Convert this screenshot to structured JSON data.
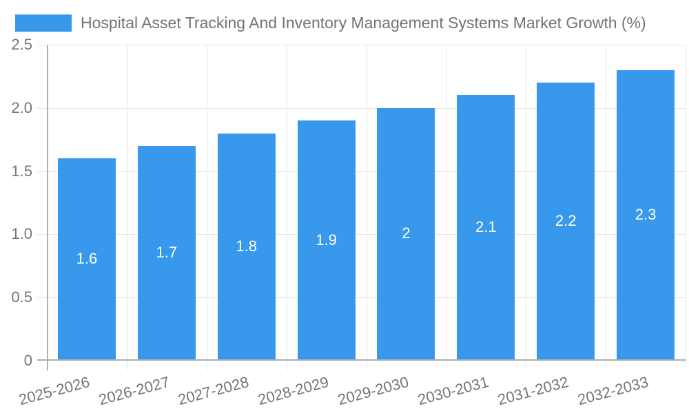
{
  "chart_data": {
    "type": "bar",
    "title": "Hospital Asset Tracking And Inventory Management Systems Market Growth (%)",
    "xlabel": "",
    "ylabel": "",
    "categories": [
      "2025-2026",
      "2026-2027",
      "2027-2028",
      "2028-2029",
      "2029-2030",
      "2030-2031",
      "2031-2032",
      "2032-2033"
    ],
    "values": [
      1.6,
      1.7,
      1.8,
      1.9,
      2,
      2.1,
      2.2,
      2.3
    ],
    "bar_labels": [
      "1.6",
      "1.7",
      "1.8",
      "1.9",
      "2",
      "2.1",
      "2.2",
      "2.3"
    ],
    "ylim": [
      0,
      2.5
    ],
    "yticks": [
      {
        "value": 0,
        "label": "0"
      },
      {
        "value": 0.5,
        "label": "0.5"
      },
      {
        "value": 1,
        "label": "1.0"
      },
      {
        "value": 1.5,
        "label": "1.5"
      },
      {
        "value": 2,
        "label": "2.0"
      },
      {
        "value": 2.5,
        "label": "2.5"
      }
    ],
    "grid": true,
    "legend_position": "top-left",
    "bar_color": "#3898ec",
    "bar_label_color": "#ffffff"
  },
  "colors": {
    "background": "#ffffff",
    "grid": "#e4e4e4",
    "axis": "#aeaeae",
    "tick_text": "#757575",
    "title_text": "#737373",
    "accent": "#3898ec"
  }
}
